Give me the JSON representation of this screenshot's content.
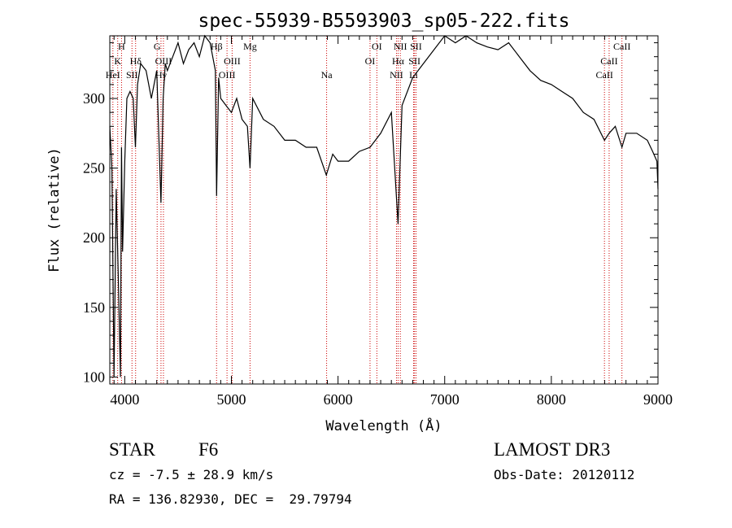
{
  "chart_data": {
    "type": "line",
    "title": "spec-55939-B5593903_sp05-222.fits",
    "xlabel": "Wavelength (Å)",
    "ylabel": "Flux (relative)",
    "xlim": [
      3860,
      9000
    ],
    "ylim": [
      95,
      345
    ],
    "xticks": [
      4000,
      5000,
      6000,
      7000,
      8000,
      9000
    ],
    "yticks": [
      100,
      150,
      200,
      250,
      300
    ],
    "grid": false,
    "series": [
      {
        "x": [
          3860,
          3880,
          3900,
          3920,
          3940,
          3960,
          3970,
          3980,
          4000,
          4020,
          4050,
          4080,
          4100,
          4120,
          4150,
          4200,
          4250,
          4300,
          4340,
          4360,
          4380,
          4400,
          4450,
          4500,
          4550,
          4600,
          4650,
          4700,
          4750,
          4800,
          4850,
          4861,
          4880,
          4900,
          4950,
          5000,
          5050,
          5100,
          5150,
          5175,
          5200,
          5300,
          5400,
          5500,
          5600,
          5700,
          5800,
          5890,
          5950,
          6000,
          6100,
          6200,
          6300,
          6400,
          6500,
          6563,
          6600,
          6700,
          6800,
          6900,
          7000,
          7100,
          7200,
          7300,
          7400,
          7500,
          7600,
          7700,
          7800,
          7900,
          8000,
          8100,
          8200,
          8300,
          8400,
          8498,
          8542,
          8600,
          8662,
          8700,
          8800,
          8900,
          8950,
          8990,
          9000
        ],
        "y": [
          280,
          250,
          100,
          235,
          170,
          100,
          265,
          190,
          255,
          300,
          305,
          300,
          265,
          310,
          325,
          320,
          300,
          320,
          225,
          300,
          325,
          320,
          330,
          340,
          325,
          335,
          340,
          330,
          345,
          340,
          320,
          230,
          315,
          300,
          295,
          290,
          300,
          285,
          280,
          250,
          300,
          285,
          280,
          270,
          270,
          265,
          265,
          245,
          260,
          255,
          255,
          262,
          265,
          275,
          290,
          210,
          295,
          315,
          325,
          335,
          345,
          340,
          345,
          340,
          337,
          335,
          340,
          330,
          320,
          313,
          310,
          305,
          300,
          290,
          285,
          270,
          275,
          280,
          265,
          275,
          275,
          270,
          262,
          255,
          235
        ]
      }
    ],
    "spectral_lines": [
      {
        "label": "H",
        "wavelength": 3970,
        "row": 0
      },
      {
        "label": "K",
        "wavelength": 3934,
        "row": 1
      },
      {
        "label": "HeI",
        "wavelength": 3889,
        "row": 2
      },
      {
        "label": "Hδ",
        "wavelength": 4102,
        "row": 1
      },
      {
        "label": "SII",
        "wavelength": 4068,
        "row": 2
      },
      {
        "label": "G",
        "wavelength": 4304,
        "row": 0
      },
      {
        "label": "OIII",
        "wavelength": 4363,
        "row": 1
      },
      {
        "label": "Hγ",
        "wavelength": 4340,
        "row": 2
      },
      {
        "label": "Hβ",
        "wavelength": 4861,
        "row": 0
      },
      {
        "label": "OIII",
        "wavelength": 5007,
        "row": 1
      },
      {
        "label": "OIII",
        "wavelength": 4959,
        "row": 2
      },
      {
        "label": "Mg",
        "wavelength": 5175,
        "row": 0
      },
      {
        "label": "Na",
        "wavelength": 5893,
        "row": 2
      },
      {
        "label": "OI",
        "wavelength": 6364,
        "row": 0
      },
      {
        "label": "OI",
        "wavelength": 6300,
        "row": 1
      },
      {
        "label": "NII",
        "wavelength": 6584,
        "row": 0
      },
      {
        "label": "Hα",
        "wavelength": 6563,
        "row": 1
      },
      {
        "label": "NII",
        "wavelength": 6548,
        "row": 2
      },
      {
        "label": "SII",
        "wavelength": 6731,
        "row": 0
      },
      {
        "label": "SII",
        "wavelength": 6717,
        "row": 1
      },
      {
        "label": "Li",
        "wavelength": 6708,
        "row": 2
      },
      {
        "label": "CaII",
        "wavelength": 8662,
        "row": 0
      },
      {
        "label": "CaII",
        "wavelength": 8542,
        "row": 1
      },
      {
        "label": "CaII",
        "wavelength": 8498,
        "row": 2
      }
    ]
  },
  "info": {
    "object_type": "STAR",
    "subclass": "F6",
    "survey": "LAMOST DR3",
    "cz": "cz = -7.5 ± 28.9 km/s",
    "obs_date": "Obs-Date: 20120112",
    "coords": "RA = 136.82930, DEC =  29.79794"
  },
  "colors": {
    "line": "#000000",
    "marker_lines": "#cc0000"
  }
}
